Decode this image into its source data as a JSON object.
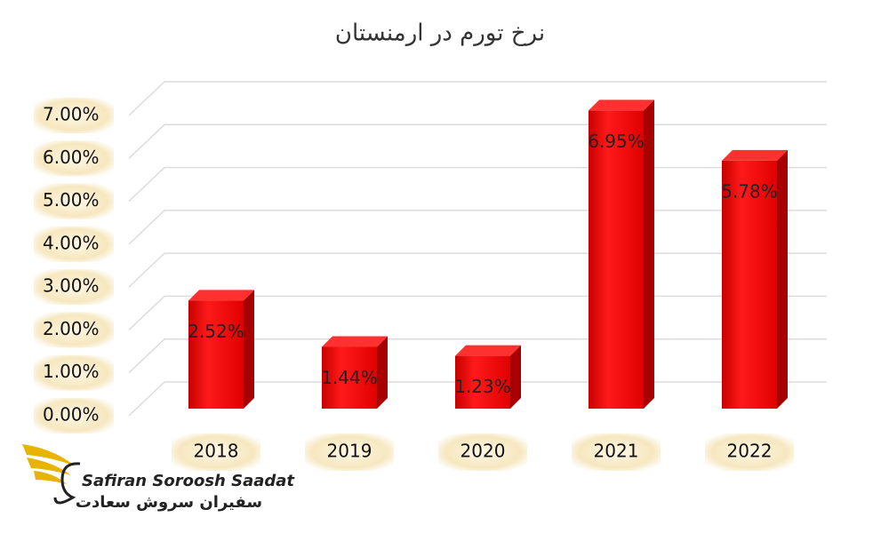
{
  "chart_data": {
    "type": "bar3d",
    "title": "نرخ تورم در ارمنستان",
    "categories": [
      "2018",
      "2019",
      "2020",
      "2021",
      "2022"
    ],
    "values": [
      2.52,
      1.44,
      1.23,
      6.95,
      5.78
    ],
    "value_labels": [
      "2.52%",
      "1.44%",
      "1.23%",
      "6.95%",
      "5.78%"
    ],
    "color": "#ff0000",
    "ylim": [
      0,
      7
    ],
    "yticks": [
      {
        "value": 0,
        "label": "0.00%"
      },
      {
        "value": 1,
        "label": "1.00%"
      },
      {
        "value": 2,
        "label": "2.00%"
      },
      {
        "value": 3,
        "label": "3.00%"
      },
      {
        "value": 4,
        "label": "4.00%"
      },
      {
        "value": 5,
        "label": "5.00%"
      },
      {
        "value": 6,
        "label": "6.00%"
      },
      {
        "value": 7,
        "label": "7.00%"
      }
    ],
    "grid": true
  },
  "logo": {
    "latin": "Safiran Soroosh Saadat",
    "persian": "سفیران سروش سعادت"
  }
}
